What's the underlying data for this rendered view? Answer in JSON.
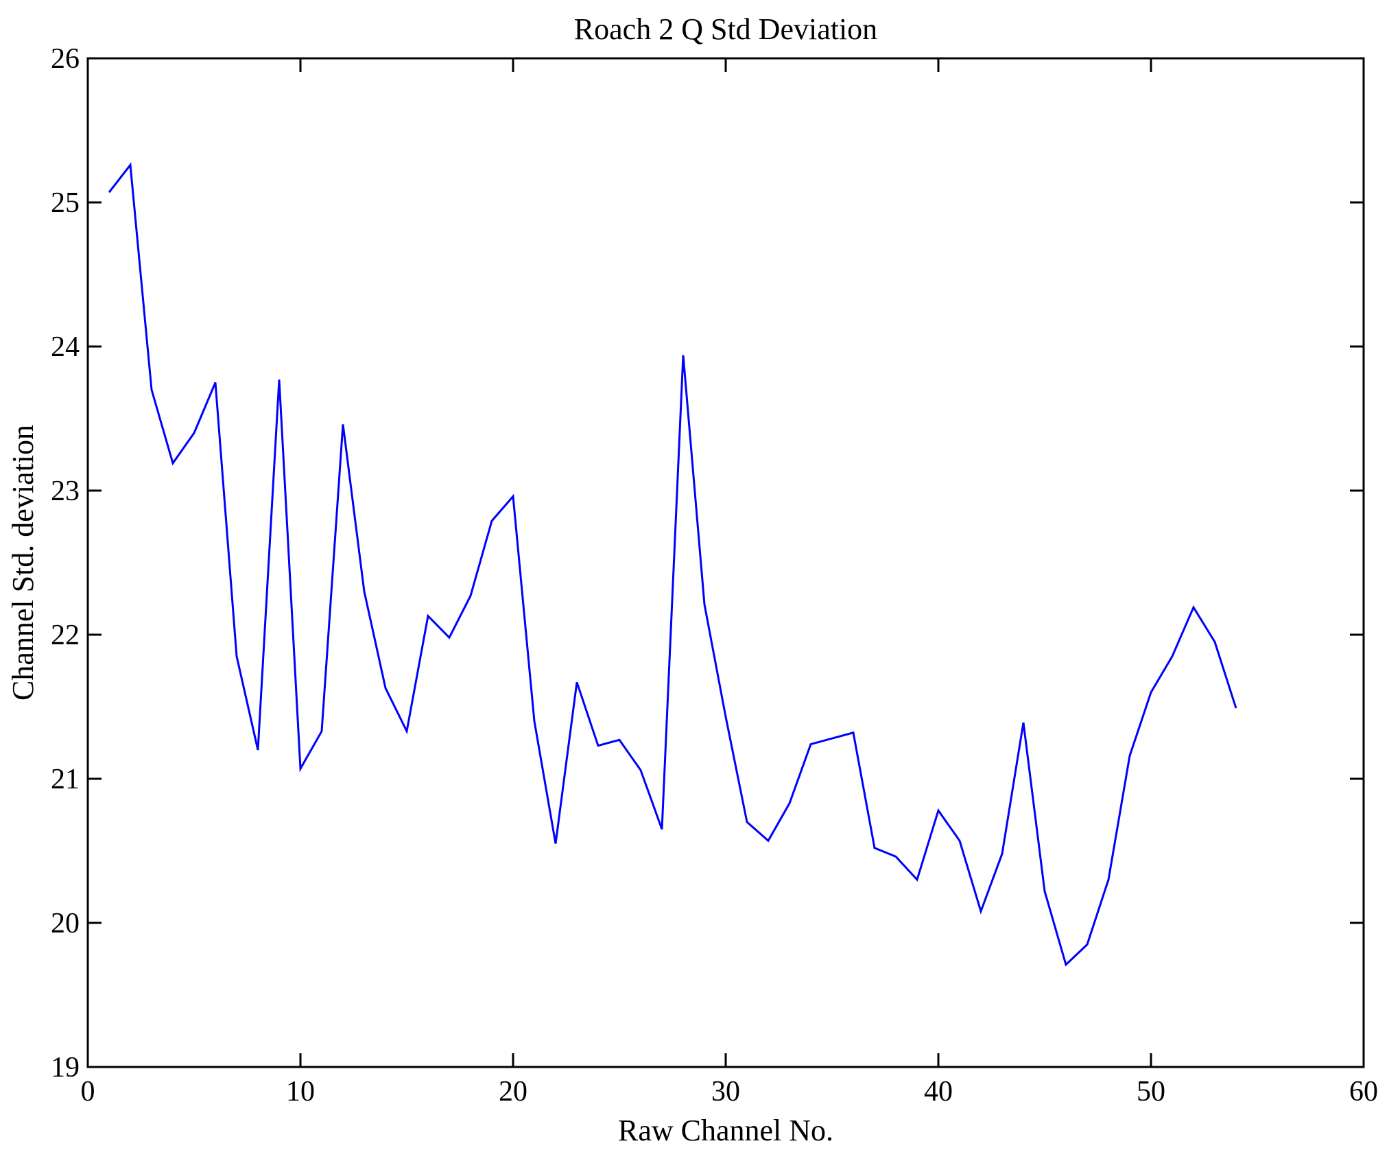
{
  "chart_data": {
    "type": "line",
    "title": "Roach 2 Q Std Deviation",
    "xlabel": "Raw Channel No.",
    "ylabel": "Channel Std. deviation",
    "xlim": [
      0,
      60
    ],
    "ylim": [
      19,
      26
    ],
    "xticks": [
      0,
      10,
      20,
      30,
      40,
      50,
      60
    ],
    "yticks": [
      19,
      20,
      21,
      22,
      23,
      24,
      25,
      26
    ],
    "grid": false,
    "legend_position": "none",
    "line_color": "#0000FF",
    "axis_color": "#000000",
    "background_color": "#FFFFFF",
    "series_name": "Channel Std. deviation vs Raw Channel No.",
    "x": [
      1,
      2,
      3,
      4,
      5,
      6,
      7,
      8,
      9,
      10,
      11,
      12,
      13,
      14,
      15,
      16,
      17,
      18,
      19,
      20,
      21,
      22,
      23,
      24,
      25,
      26,
      27,
      28,
      29,
      30,
      31,
      32,
      33,
      34,
      35,
      36,
      37,
      38,
      39,
      40,
      41,
      42,
      43,
      44,
      45,
      46,
      47,
      48,
      49,
      50,
      51,
      52,
      53,
      54
    ],
    "y": [
      25.07,
      25.26,
      23.7,
      23.19,
      23.4,
      23.75,
      21.85,
      21.2,
      23.77,
      21.07,
      21.33,
      23.46,
      22.3,
      21.63,
      21.33,
      22.13,
      21.98,
      22.27,
      22.79,
      22.96,
      21.4,
      20.55,
      21.67,
      21.23,
      21.27,
      21.06,
      20.65,
      23.94,
      22.21,
      21.43,
      20.7,
      20.57,
      20.83,
      21.24,
      21.28,
      21.32,
      20.52,
      20.46,
      20.3,
      20.78,
      20.57,
      20.08,
      20.48,
      21.39,
      20.22,
      19.71,
      19.85,
      20.3,
      21.16,
      21.6,
      21.85,
      22.19,
      21.95,
      21.49
    ]
  }
}
